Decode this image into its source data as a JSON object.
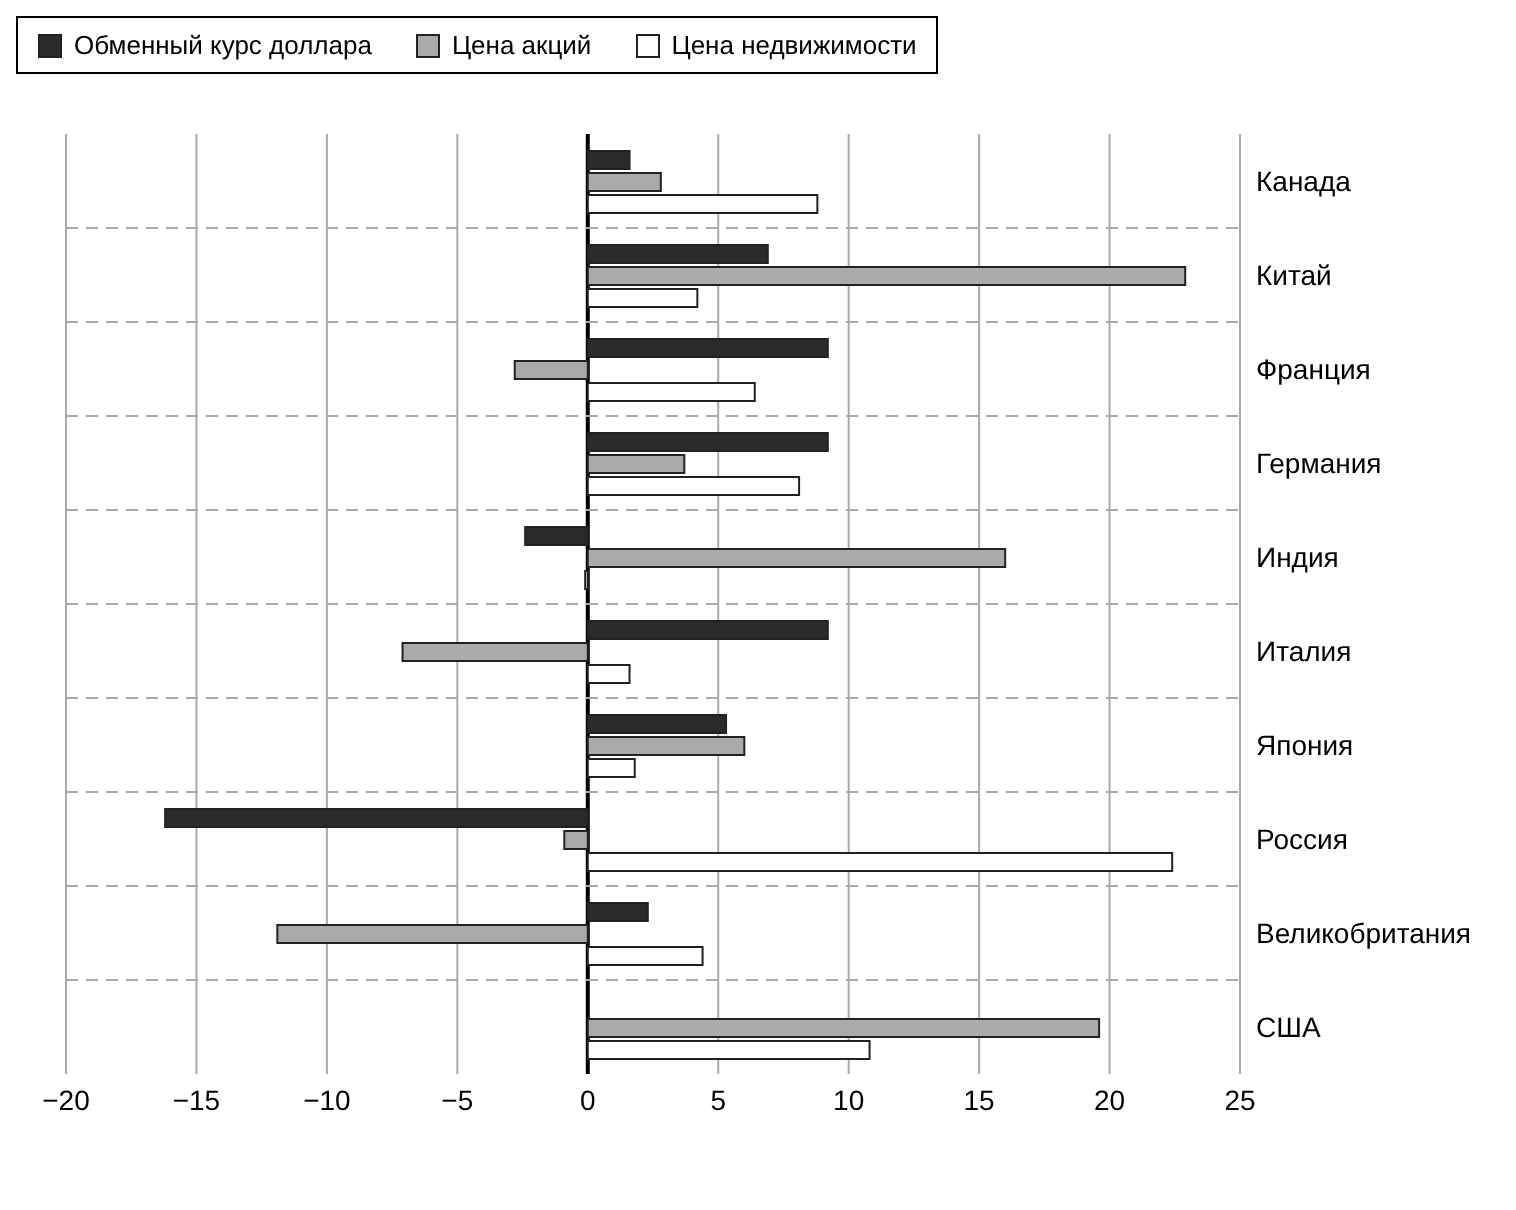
{
  "chart_data": {
    "type": "bar",
    "orientation": "horizontal",
    "categories": [
      "Канада",
      "Китай",
      "Франция",
      "Германия",
      "Индия",
      "Италия",
      "Япония",
      "Россия",
      "Великобритания",
      "США"
    ],
    "series": [
      {
        "name": "Обменный курс доллара",
        "color": "#2b2b2b",
        "values": [
          1.6,
          6.9,
          9.2,
          9.2,
          -2.4,
          9.2,
          5.3,
          -16.2,
          2.3,
          null
        ]
      },
      {
        "name": "Цена акций",
        "color": "#aaaaaa",
        "values": [
          2.8,
          22.9,
          -2.8,
          3.7,
          16.0,
          -7.1,
          6.0,
          -0.9,
          -11.9,
          19.6
        ]
      },
      {
        "name": "Цена недвижимости",
        "color": "#ffffff",
        "values": [
          8.8,
          4.2,
          6.4,
          8.1,
          -0.1,
          1.6,
          1.8,
          22.4,
          4.4,
          10.8
        ]
      }
    ],
    "xlim": [
      -20,
      25
    ],
    "xticks": [
      -20,
      -15,
      -10,
      -5,
      0,
      5,
      10,
      15,
      20,
      25
    ],
    "grid": true,
    "legend": "top left"
  }
}
